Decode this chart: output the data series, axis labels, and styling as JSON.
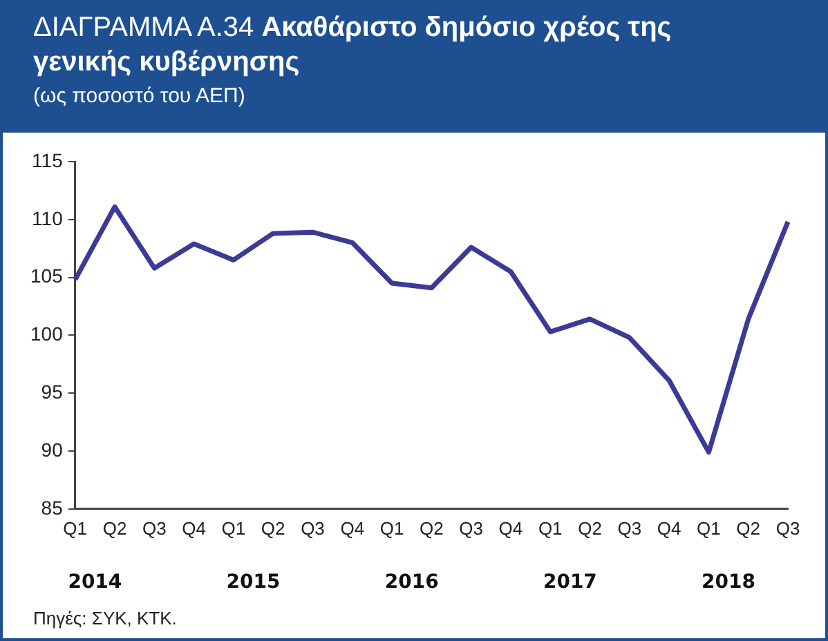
{
  "chart_data": {
    "type": "line",
    "title": "ΔΙΑΓΡΑΜΜΑ Α.34 Ακαθάριστο δημόσιο χρέος της γενικής κυβέρνησης",
    "subtitle": "(ως ποσοστό του ΑΕΠ)",
    "categories": [
      "Q1",
      "Q2",
      "Q3",
      "Q4",
      "Q1",
      "Q2",
      "Q3",
      "Q4",
      "Q1",
      "Q2",
      "Q3",
      "Q4",
      "Q1",
      "Q2",
      "Q3",
      "Q4",
      "Q1",
      "Q2",
      "Q3"
    ],
    "series": [
      {
        "color": "#3b3b96",
        "values": [
          104.8,
          111.1,
          105.8,
          107.9,
          106.5,
          108.8,
          108.9,
          108.0,
          104.5,
          104.1,
          107.6,
          105.5,
          100.3,
          101.4,
          99.8,
          96.1,
          89.9,
          101.4,
          109.8
        ]
      }
    ],
    "ylim": [
      85,
      115
    ],
    "yticks": [
      85,
      90,
      95,
      100,
      105,
      110,
      115
    ],
    "grid": false,
    "legend": false,
    "marker": "none",
    "line_style": "solid",
    "annotations": [
      "2014",
      "2015",
      "2016",
      "2017",
      "2018",
      "Πηγές: ΣΥΚ, ΚΤΚ."
    ]
  }
}
